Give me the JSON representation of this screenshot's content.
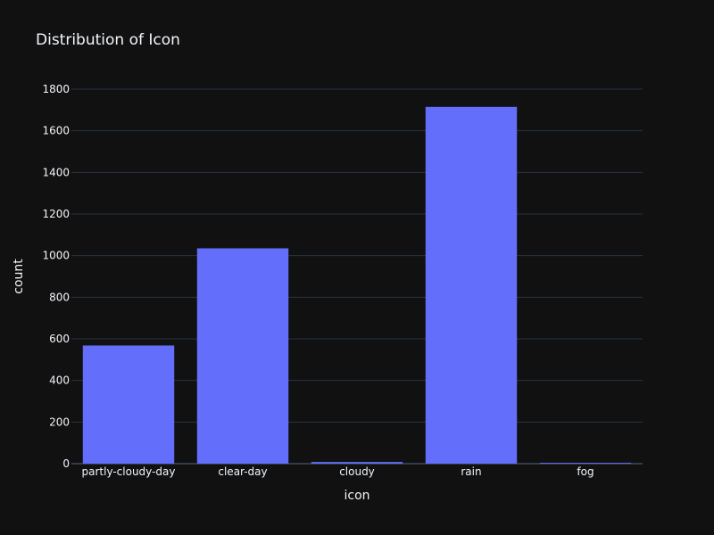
{
  "chart_data": {
    "type": "bar",
    "title": "Distribution of Icon",
    "xlabel": "icon",
    "ylabel": "count",
    "categories": [
      "partly-cloudy-day",
      "clear-day",
      "cloudy",
      "rain",
      "fog"
    ],
    "values": [
      568,
      1035,
      8,
      1715,
      4
    ],
    "ylim": [
      0,
      1800
    ],
    "yticks": [
      0,
      200,
      400,
      600,
      800,
      1000,
      1200,
      1400,
      1600,
      1800
    ],
    "grid": true,
    "legend": "none",
    "colors": {
      "background": "#111111",
      "bar": "#636efa",
      "grid": "#283442",
      "text": "#f2f5fa"
    }
  }
}
